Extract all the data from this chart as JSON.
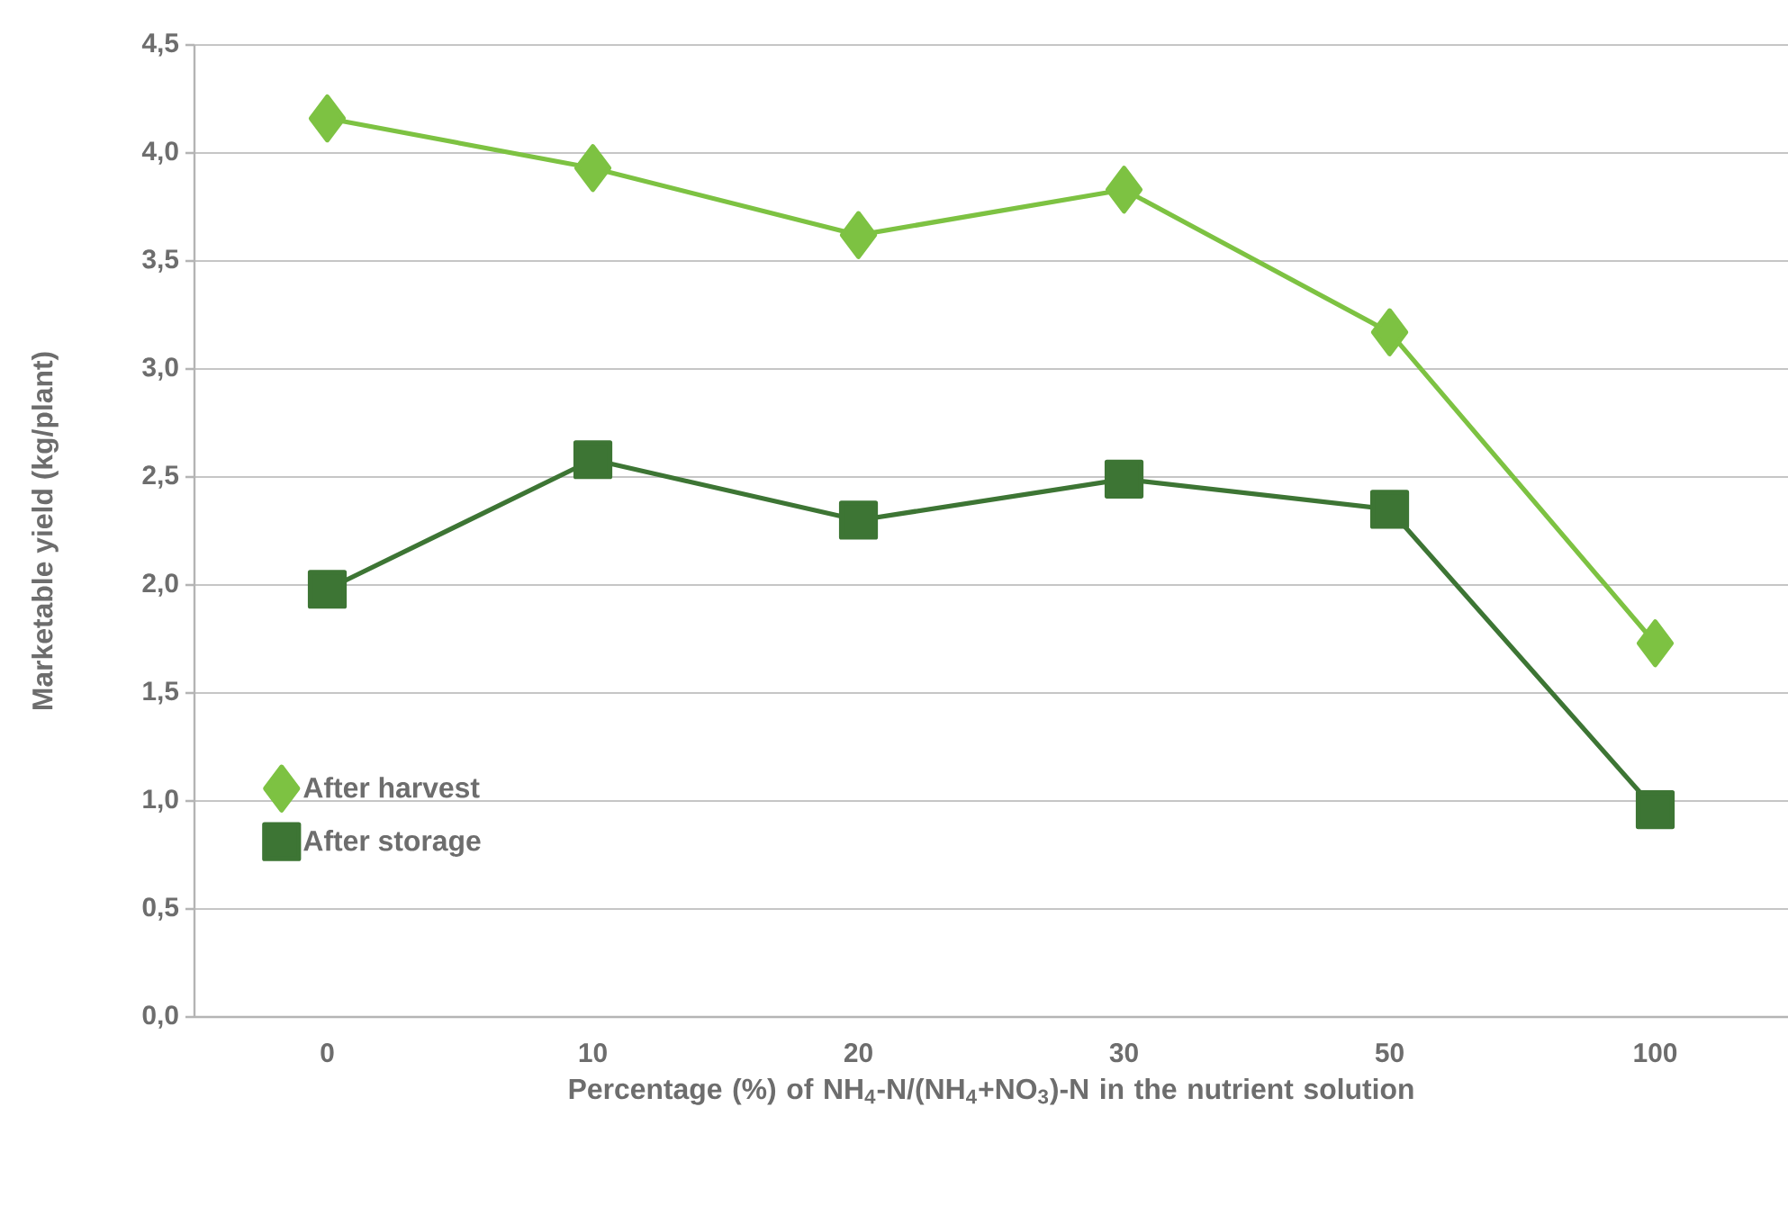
{
  "chart_data": {
    "type": "line",
    "xlabel": "Percentage (%) of NH$_{4}$-N/(NH$_{4}$+NO$_{3}$)-N in the nutrient solution",
    "ylabel": "Marketable yield (kg/plant)",
    "categories": [
      "0",
      "10",
      "20",
      "30",
      "50",
      "100"
    ],
    "series": [
      {
        "name": "After harvest",
        "color": "#7dc242",
        "marker": "diamond",
        "values": [
          4.16,
          3.93,
          3.62,
          3.83,
          3.17,
          1.73
        ]
      },
      {
        "name": "After storage",
        "color": "#3d7534",
        "marker": "square",
        "values": [
          1.98,
          2.58,
          2.3,
          2.49,
          2.35,
          0.96
        ]
      }
    ],
    "ylim": [
      0,
      4.5
    ],
    "yticks": [
      {
        "value": 0,
        "label": "0,0"
      },
      {
        "value": 0.5,
        "label": "0,5"
      },
      {
        "value": 1,
        "label": "1,0"
      },
      {
        "value": 1.5,
        "label": "1,5"
      },
      {
        "value": 2,
        "label": "2,0"
      },
      {
        "value": 2.5,
        "label": "2,5"
      },
      {
        "value": 3,
        "label": "3,0"
      },
      {
        "value": 3.5,
        "label": "3,5"
      },
      {
        "value": 4,
        "label": "4,0"
      },
      {
        "value": 4.5,
        "label": "4,5"
      }
    ],
    "grid": "y",
    "legend": "left"
  }
}
